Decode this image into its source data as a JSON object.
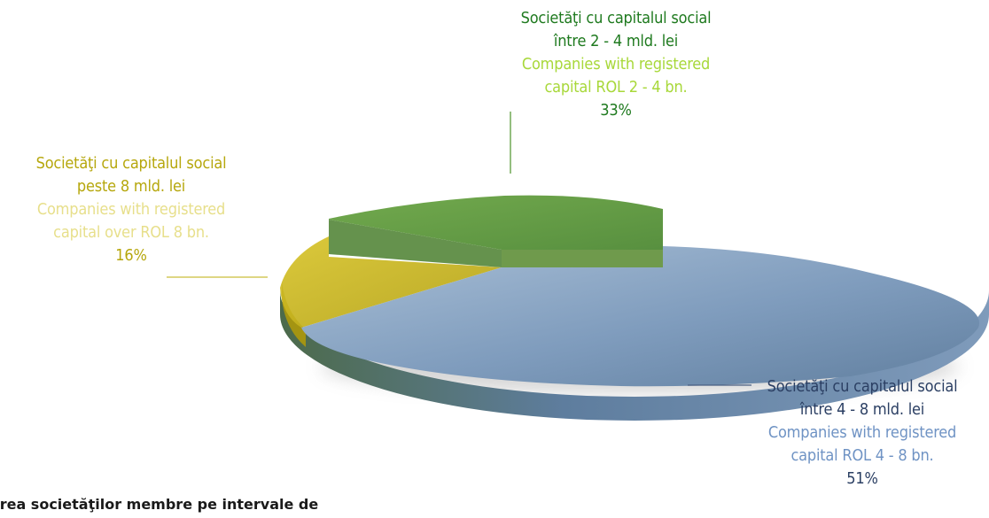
{
  "chart_data": {
    "type": "pie",
    "slices": [
      {
        "label_ro": "Societăţi cu capitalul social între 2 - 4 mld. lei",
        "label_en": "Companies with registered capital ROL 2 - 4 bn.",
        "value": 33,
        "value_label": "33%",
        "color": "#5e9a3e"
      },
      {
        "label_ro": "Societăţi cu capitalul social peste 8 mld. lei",
        "label_en": "Companies with registered capital over ROL 8 bn.",
        "value": 16,
        "value_label": "16%",
        "color": "#c9b520"
      },
      {
        "label_ro": "Societăţi cu capitalul social între 4 - 8 mld. lei",
        "label_en": "Companies with registered capital ROL 4 - 8 bn.",
        "value": 51,
        "value_label": "51%",
        "color": "#7e9bbc"
      }
    ]
  },
  "labels": {
    "top": {
      "ro_line1": "Societăţi cu capitalul social",
      "ro_line2": "între 2 - 4 mld. lei",
      "en_line1": "Companies with registered",
      "en_line2": "capital ROL 2 - 4 bn.",
      "pct": "33%"
    },
    "left": {
      "ro_line1": "Societăţi cu capitalul social",
      "ro_line2": "peste 8 mld. lei",
      "en_line1": "Companies with registered",
      "en_line2": "capital over ROL 8 bn.",
      "pct": "16%"
    },
    "right": {
      "ro_line1": "Societăţi cu capitalul social",
      "ro_line2": "între 4 - 8 mld. lei",
      "en_line1": "Companies with registered",
      "en_line2": "capital ROL 4 - 8 bn.",
      "pct": "51%"
    }
  },
  "caption": "nderea societăţilor membre pe intervale de"
}
